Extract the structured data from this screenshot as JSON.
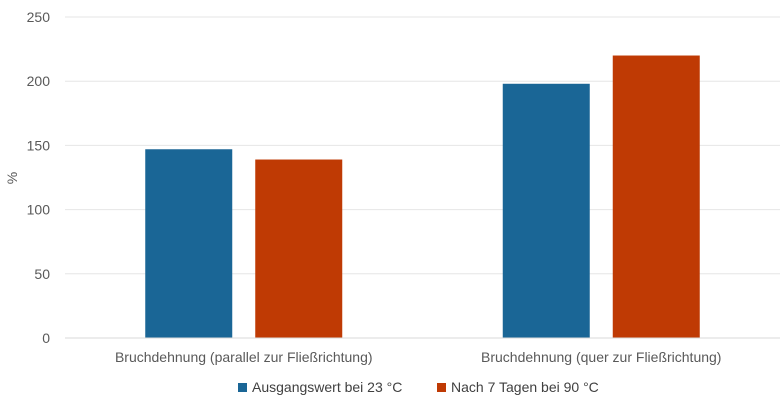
{
  "chart_data": {
    "type": "bar",
    "categories": [
      "Bruchdehnung (parallel zur Fließrichtung)",
      "Bruchdehnung (quer zur Fließrichtung)"
    ],
    "series": [
      {
        "name": "Ausgangswert bei 23 °C",
        "values": [
          147,
          198
        ],
        "color": "#1a6696"
      },
      {
        "name": "Nach 7 Tagen bei 90 °C",
        "values": [
          139,
          220
        ],
        "color": "#bf3a04"
      }
    ],
    "ylabel": "%",
    "ylim": [
      0,
      250
    ],
    "yticks": [
      "0",
      "50",
      "100",
      "150",
      "200",
      "250"
    ],
    "grid": true,
    "legend_position": "bottom"
  }
}
